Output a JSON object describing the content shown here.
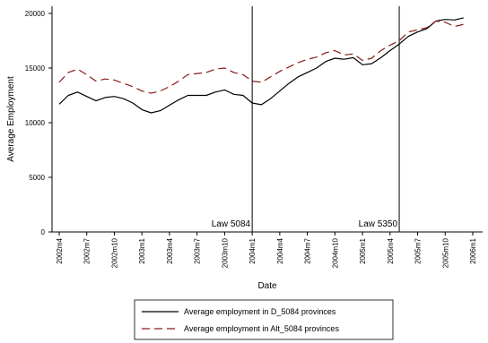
{
  "chart_data": {
    "type": "line",
    "title": "",
    "xlabel": "Date",
    "ylabel": "Average Employment",
    "ylim": [
      0,
      20000
    ],
    "yticks": [
      0,
      5000,
      10000,
      15000,
      20000
    ],
    "xlim": [
      "2002m4",
      "2006m1"
    ],
    "xticks": [
      "2002m4",
      "2002m7",
      "2002m10",
      "2003m1",
      "2003m4",
      "2003m7",
      "2003m10",
      "2004m1",
      "2004m4",
      "2004m7",
      "2004m10",
      "2005m1",
      "2005m4",
      "2005m7",
      "2005m10",
      "2006m1"
    ],
    "grid": false,
    "legend_position": "bottom",
    "x": [
      "2002m4",
      "2002m5",
      "2002m6",
      "2002m7",
      "2002m8",
      "2002m9",
      "2002m10",
      "2002m11",
      "2002m12",
      "2003m1",
      "2003m2",
      "2003m3",
      "2003m4",
      "2003m5",
      "2003m6",
      "2003m7",
      "2003m8",
      "2003m9",
      "2003m10",
      "2003m11",
      "2003m12",
      "2004m1",
      "2004m2",
      "2004m3",
      "2004m4",
      "2004m5",
      "2004m6",
      "2004m7",
      "2004m8",
      "2004m9",
      "2004m10",
      "2004m11",
      "2004m12",
      "2005m1",
      "2005m2",
      "2005m3",
      "2005m4",
      "2005m5",
      "2005m6",
      "2005m7",
      "2005m8",
      "2005m9",
      "2005m10",
      "2005m11",
      "2005m12"
    ],
    "series": [
      {
        "name": "Average employment in D_5084 provinces",
        "color": "#000000",
        "dash": "solid",
        "values": [
          11700,
          12500,
          12800,
          12400,
          12000,
          12300,
          12400,
          12200,
          11800,
          11200,
          10900,
          11100,
          11600,
          12100,
          12500,
          12500,
          12500,
          12800,
          13000,
          12600,
          12500,
          11800,
          11650,
          12200,
          12900,
          13600,
          14200,
          14600,
          15000,
          15600,
          15900,
          15800,
          15950,
          15300,
          15400,
          15950,
          16600,
          17200,
          17900,
          18300,
          18600,
          19300,
          19450,
          19400,
          19600
        ]
      },
      {
        "name": "Average employment in Alt_5084 provinces",
        "color": "#8b1a1a",
        "dash": "long-dash",
        "values": [
          13700,
          14600,
          14900,
          14400,
          13800,
          14000,
          13900,
          13600,
          13300,
          12900,
          12700,
          12900,
          13300,
          13800,
          14400,
          14500,
          14600,
          14900,
          15000,
          14600,
          14400,
          13800,
          13700,
          14200,
          14700,
          15100,
          15500,
          15800,
          16000,
          16400,
          16600,
          16200,
          16300,
          15700,
          15900,
          16600,
          17100,
          17500,
          18300,
          18500,
          18700,
          19300,
          19200,
          18800,
          19000
        ]
      }
    ],
    "annotations": [
      {
        "label": "Law 5084",
        "x": "2004m1"
      },
      {
        "label": "Law 5350",
        "x": "2005m5"
      }
    ]
  }
}
